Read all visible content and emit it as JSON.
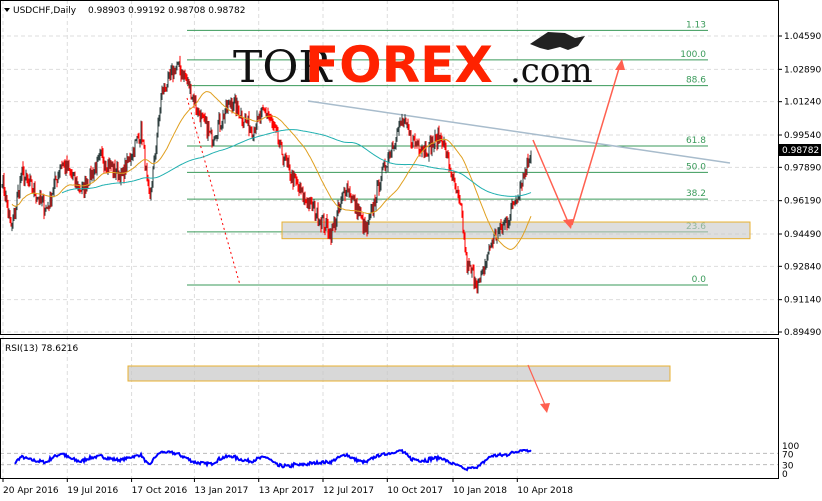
{
  "header": {
    "symbol_timeframe": "USDCHF,Daily",
    "ohlc": "0.98903 0.99192 0.98708 0.98782"
  },
  "logo": {
    "text_dark": "TOR",
    "text_red": "FOREX",
    "text_suffix": ".com"
  },
  "rsi": {
    "label": "RSI(13) 78.6216"
  },
  "colors": {
    "bull": "#2f3f3f",
    "bear": "#ff0000",
    "ma_fast": "#e0a020",
    "ma_slow": "#20b0b0",
    "fib": "#3a9a5a",
    "rsi": "#0000ff",
    "arrow": "#ff6050",
    "zone": "#e8b030"
  },
  "chart_data": {
    "type": "candlestick",
    "title": "USDCHF,Daily",
    "ylim": [
      0.8949,
      1.0559
    ],
    "price_ticks": [
      "1.04590",
      "1.02890",
      "1.01240",
      "0.99540",
      "0.97890",
      "0.96190",
      "0.94490",
      "0.92840",
      "0.91140",
      "0.89490"
    ],
    "last_price": "0.98782",
    "x_ticks": [
      "20 Apr 2016",
      "19 Jul 2016",
      "17 Oct 2016",
      "13 Jan 2017",
      "13 Apr 2017",
      "12 Jul 2017",
      "10 Oct 2017",
      "10 Jan 2018",
      "10 Apr 2018"
    ],
    "x_tick_dates": [
      "2016-04-20",
      "2016-07-19",
      "2016-10-17",
      "2017-01-13",
      "2017-04-13",
      "2017-07-12",
      "2017-10-10",
      "2018-01-10",
      "2018-04-10"
    ],
    "close_path": [
      [
        "2016-04-18",
        0.975
      ],
      [
        "2016-05-02",
        0.947
      ],
      [
        "2016-05-16",
        0.976
      ],
      [
        "2016-06-20",
        0.957
      ],
      [
        "2016-07-11",
        0.982
      ],
      [
        "2016-08-08",
        0.967
      ],
      [
        "2016-09-05",
        0.984
      ],
      [
        "2016-10-03",
        0.974
      ],
      [
        "2016-10-31",
        0.998
      ],
      [
        "2016-11-11",
        0.96
      ],
      [
        "2016-11-28",
        1.016
      ],
      [
        "2016-12-19",
        1.031
      ],
      [
        "2017-01-02",
        1.024
      ],
      [
        "2017-01-16",
        1.009
      ],
      [
        "2017-02-06",
        0.994
      ],
      [
        "2017-03-06",
        1.013
      ],
      [
        "2017-04-03",
        0.998
      ],
      [
        "2017-04-24",
        1.008
      ],
      [
        "2017-05-22",
        0.98
      ],
      [
        "2017-06-12",
        0.965
      ],
      [
        "2017-07-10",
        0.952
      ],
      [
        "2017-07-24",
        0.945
      ],
      [
        "2017-08-14",
        0.97
      ],
      [
        "2017-09-11",
        0.946
      ],
      [
        "2017-10-02",
        0.975
      ],
      [
        "2017-10-30",
        1.003
      ],
      [
        "2017-11-13",
        0.993
      ],
      [
        "2017-12-04",
        0.988
      ],
      [
        "2017-12-25",
        0.995
      ],
      [
        "2018-01-08",
        0.975
      ],
      [
        "2018-01-22",
        0.955
      ],
      [
        "2018-01-29",
        0.929
      ],
      [
        "2018-02-16",
        0.919
      ],
      [
        "2018-03-05",
        0.941
      ],
      [
        "2018-03-26",
        0.951
      ],
      [
        "2018-04-09",
        0.964
      ],
      [
        "2018-04-30",
        0.98782
      ]
    ],
    "fib_levels": [
      {
        "label": "1.13",
        "price": 1.0488
      },
      {
        "label": "100.0",
        "price": 1.0337
      },
      {
        "label": "88.6",
        "price": 1.0206
      },
      {
        "label": "61.8",
        "price": 0.9898
      },
      {
        "label": "50.0",
        "price": 0.9763
      },
      {
        "label": "38.2",
        "price": 0.9627
      },
      {
        "label": "23.6",
        "price": 0.946
      },
      {
        "label": "0.0",
        "price": 0.9189
      }
    ],
    "support_zone": [
      0.9425,
      0.951
    ],
    "rsi_panel": {
      "period": 13,
      "last": 78.6216,
      "levels": [
        "100",
        "70",
        "30",
        "0"
      ],
      "ylim": [
        0,
        100
      ],
      "zone": [
        70,
        78
      ]
    }
  }
}
